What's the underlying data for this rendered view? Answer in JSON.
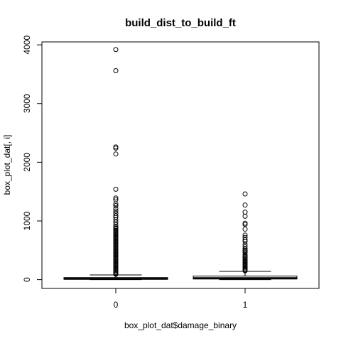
{
  "chart_data": {
    "type": "box",
    "title": "build_dist_to_build_ft",
    "xlabel": "box_plot_dat$damage_binary",
    "ylabel": "box_plot_dat[, i]",
    "ylim": [
      -150,
      4050
    ],
    "yticks": [
      "0",
      "1000",
      "2000",
      "3000",
      "4000"
    ],
    "ytick_values": [
      0,
      1000,
      2000,
      3000,
      4000
    ],
    "categories": [
      "0",
      "1"
    ],
    "grid": false,
    "boxes": [
      {
        "category": "0",
        "min": 0,
        "q1": 5,
        "median": 15,
        "q3": 35,
        "whisker_high": 80,
        "outliers": [
          3920,
          3560,
          2260,
          2240,
          2140,
          1540,
          1390,
          1360,
          1290,
          1260,
          1210,
          1170,
          1130,
          1090,
          1060,
          1020,
          980,
          940,
          900,
          880,
          860,
          840,
          820,
          800,
          780,
          760,
          740,
          720,
          700,
          680,
          660,
          640,
          620,
          600,
          580,
          560,
          540,
          520,
          500,
          480,
          460,
          440,
          420,
          400,
          380,
          360,
          340,
          320,
          300,
          280,
          260,
          240,
          220,
          200,
          180,
          160,
          140,
          120,
          100,
          90
        ]
      },
      {
        "category": "1",
        "min": 0,
        "q1": 10,
        "median": 25,
        "q3": 60,
        "whisker_high": 140,
        "outliers": [
          1460,
          1270,
          1150,
          1080,
          960,
          940,
          860,
          760,
          720,
          680,
          650,
          600,
          560,
          520,
          500,
          480,
          460,
          420,
          400,
          380,
          360,
          340,
          320,
          300,
          280,
          260,
          240,
          220,
          200,
          180,
          160,
          150
        ]
      }
    ]
  }
}
